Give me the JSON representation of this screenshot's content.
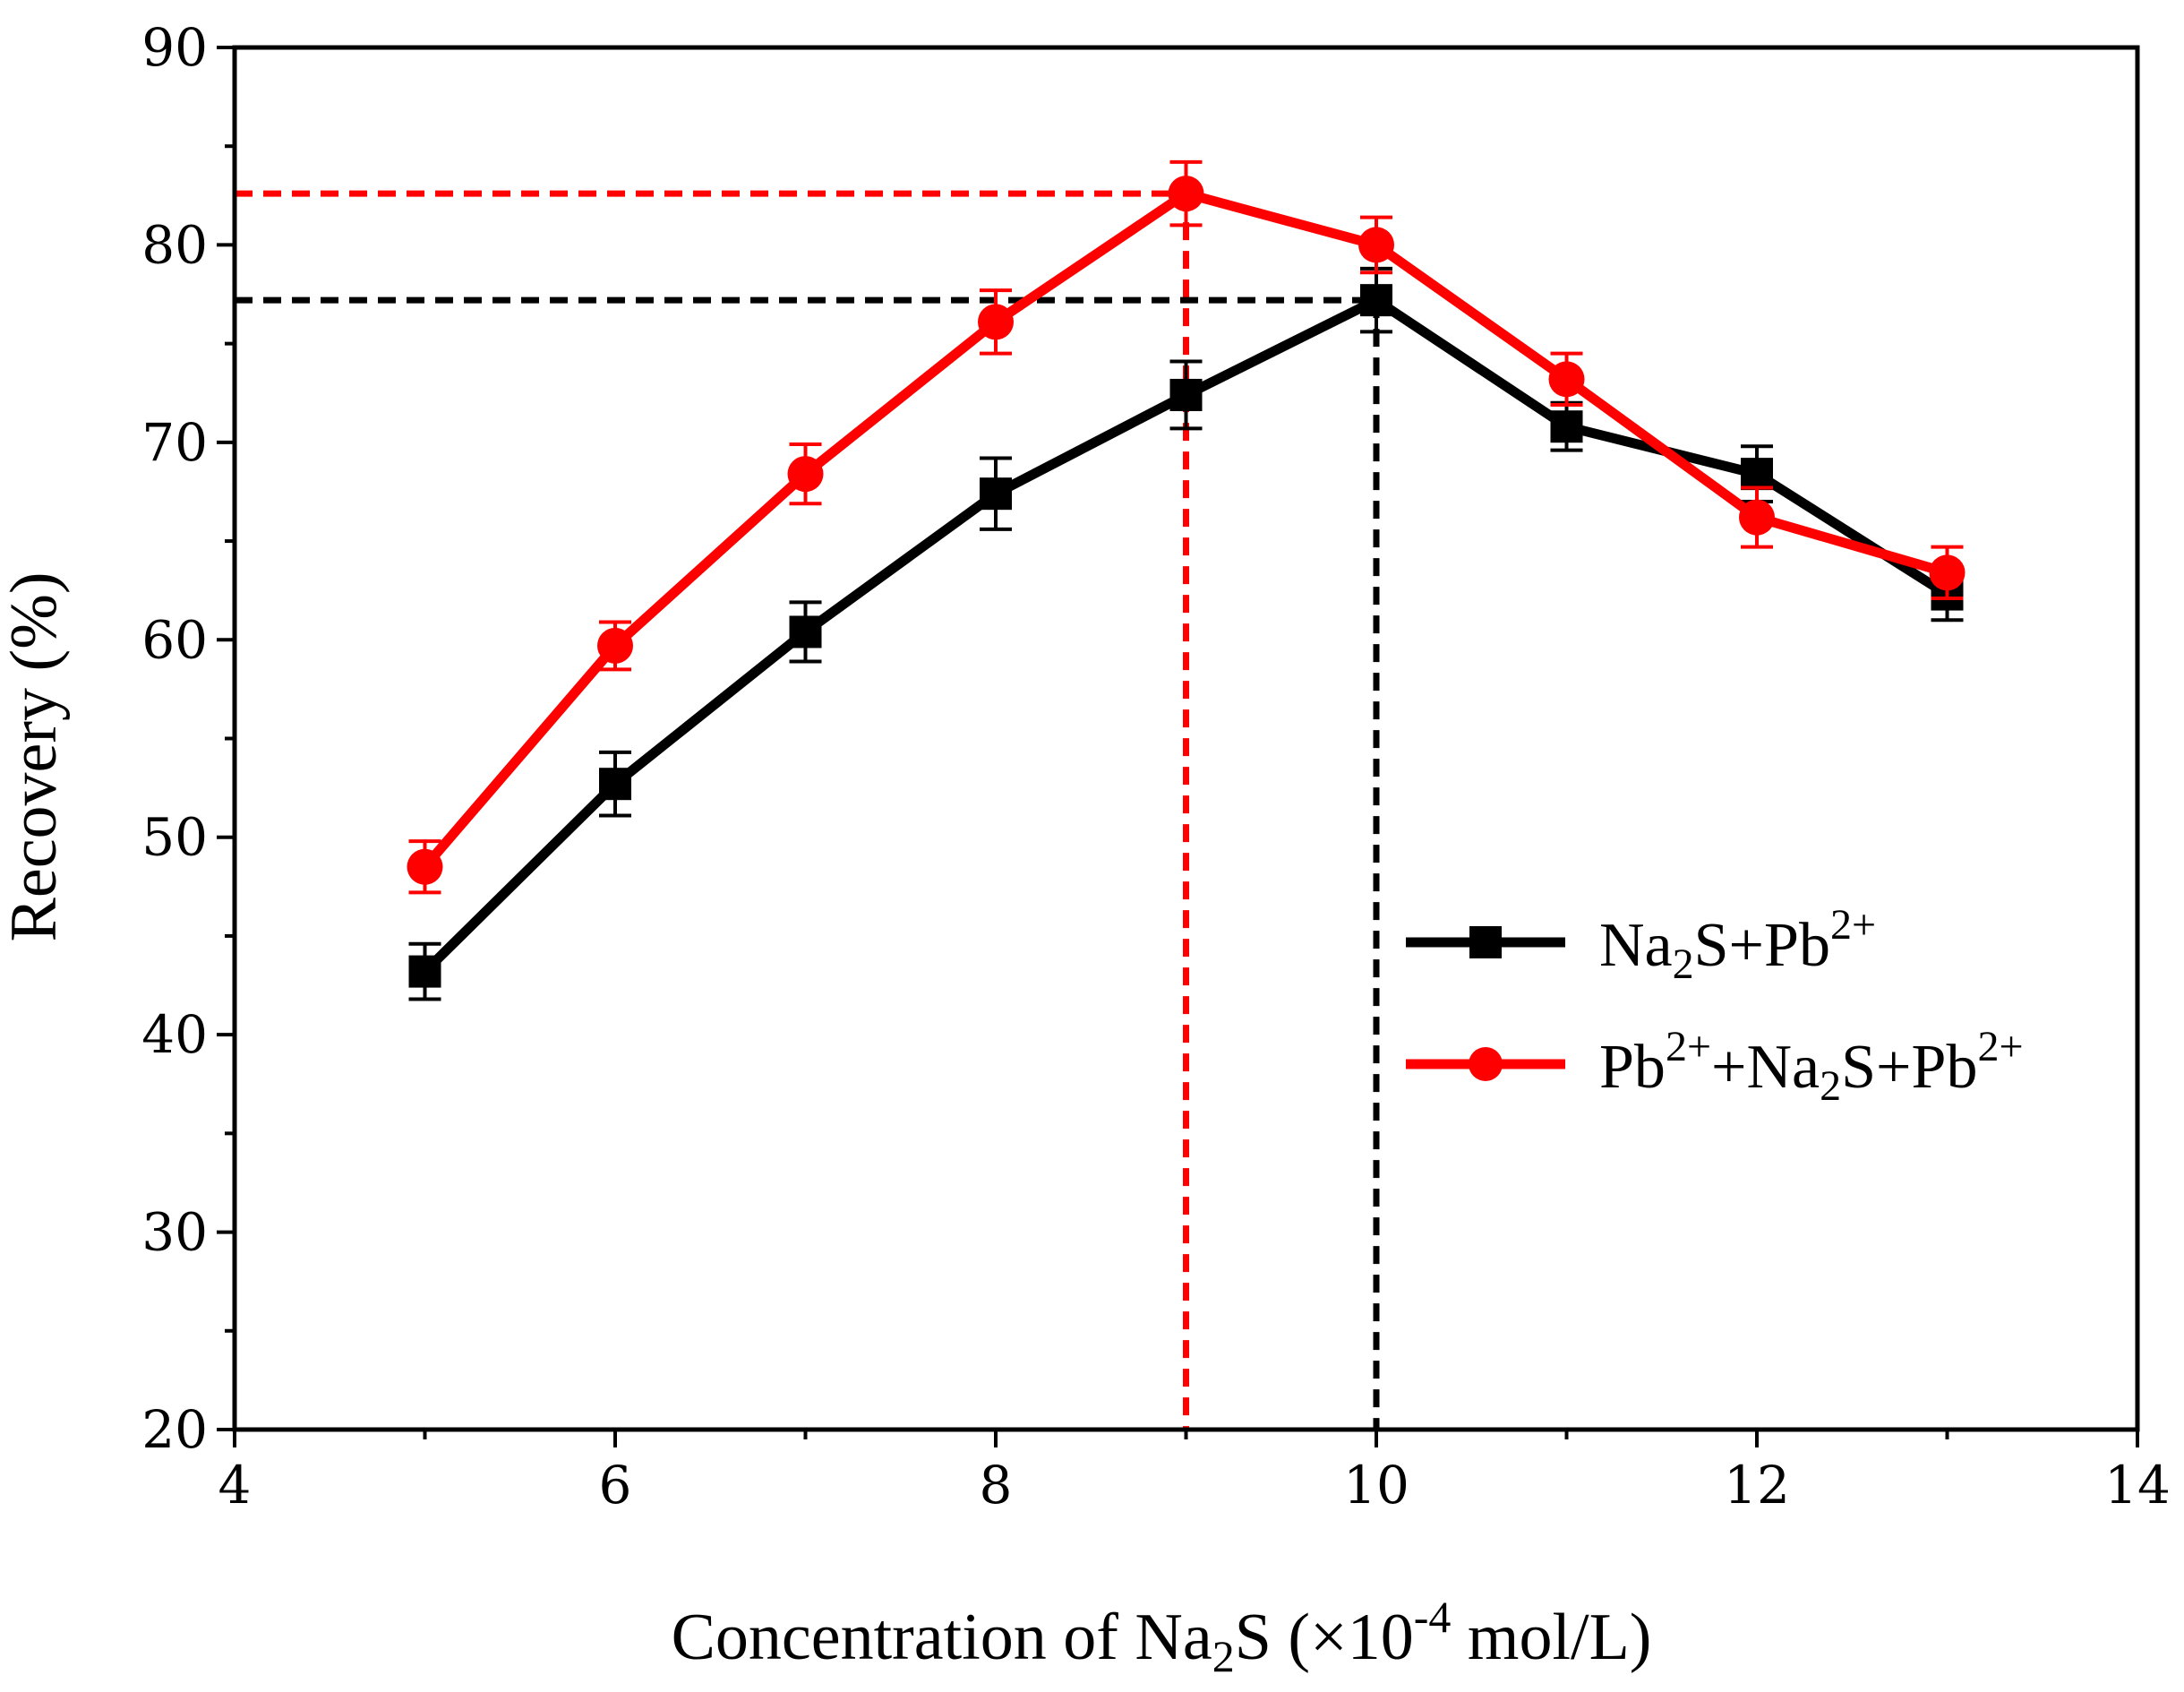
{
  "chart_data": {
    "type": "line",
    "title": "",
    "xlabel": {
      "pre": "Concentration of Na",
      "sub": "2",
      "mid": "S (×10",
      "sup": "-4",
      "post": " mol/L)"
    },
    "ylabel": "Recovery (%)",
    "xlim": [
      4,
      14
    ],
    "ylim": [
      20,
      90
    ],
    "x_ticks": [
      "4",
      "6",
      "8",
      "10",
      "12",
      "14"
    ],
    "y_ticks": [
      "20",
      "30",
      "40",
      "50",
      "60",
      "70",
      "80",
      "90"
    ],
    "grid": false,
    "legend_position": "right",
    "x": [
      5,
      6,
      7,
      8,
      9,
      10,
      11,
      12,
      13
    ],
    "series": [
      {
        "name": "Na2S+Pb2+",
        "label": {
          "p1": "Na",
          "s1": "2",
          "p2": "S+Pb",
          "u1": "2+"
        },
        "color": "#000000",
        "marker": "square",
        "values": [
          43.2,
          52.7,
          60.4,
          67.4,
          72.4,
          77.2,
          70.8,
          68.4,
          62.3
        ],
        "errors": [
          1.4,
          1.6,
          1.5,
          1.8,
          1.7,
          1.6,
          1.2,
          1.4,
          1.3
        ]
      },
      {
        "name": "Pb2++Na2S+Pb2+",
        "label": {
          "p0": "Pb",
          "u0": "2+",
          "p1": "+Na",
          "s1": "2",
          "p2": "S+Pb",
          "u1": "2+"
        },
        "color": "#ff0000",
        "marker": "circle",
        "values": [
          48.5,
          59.7,
          68.4,
          76.1,
          82.6,
          80.0,
          73.2,
          66.2,
          63.4
        ],
        "errors": [
          1.3,
          1.2,
          1.5,
          1.6,
          1.6,
          1.4,
          1.3,
          1.5,
          1.3
        ]
      }
    ],
    "reference_lines": [
      {
        "color": "#ff0000",
        "x": 9,
        "y": 82.6
      },
      {
        "color": "#000000",
        "x": 10,
        "y": 77.2
      }
    ]
  }
}
